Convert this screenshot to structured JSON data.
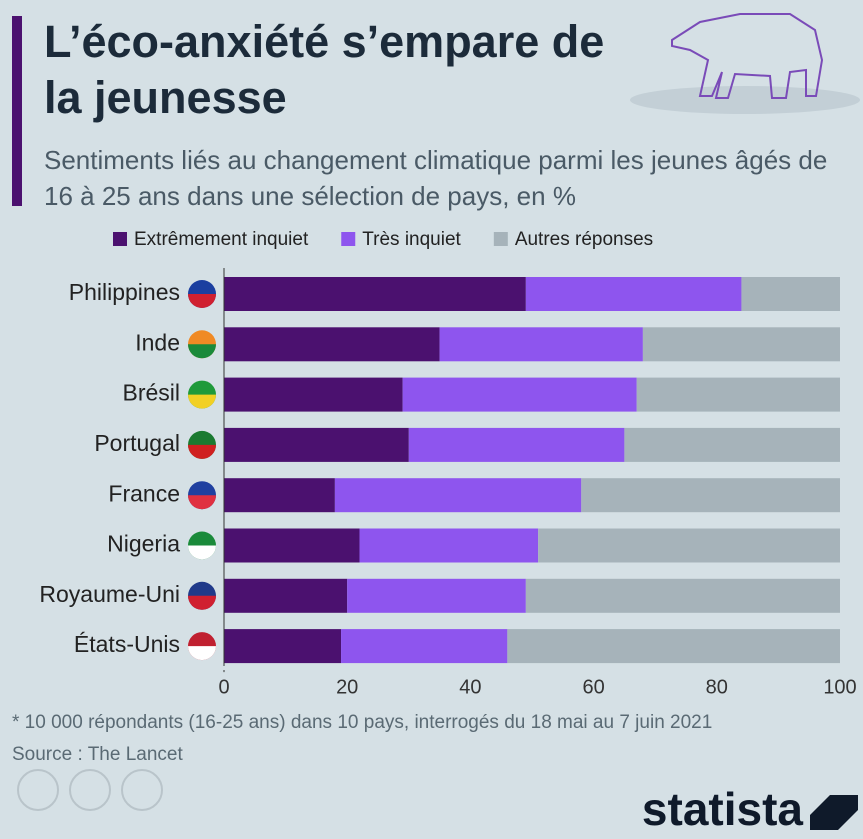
{
  "chart_data": {
    "type": "bar",
    "orientation": "horizontal",
    "stacked": true,
    "title": "L’éco-anxiété s’empare de la jeunesse",
    "subtitle": "Sentiments liés au changement climatique parmi les jeunes âgés de 16 à 25 ans dans une sélection de pays, en %",
    "categories": [
      "Philippines",
      "Inde",
      "Brésil",
      "Portugal",
      "France",
      "Nigeria",
      "Royaume-Uni",
      "États-Unis"
    ],
    "series": [
      {
        "name": "Extrêmement inquiet",
        "color": "#4b116f",
        "values": [
          49,
          35,
          29,
          30,
          18,
          22,
          20,
          19
        ]
      },
      {
        "name": "Très inquiet",
        "color": "#8e55ee",
        "values": [
          35,
          33,
          38,
          35,
          40,
          29,
          29,
          27
        ]
      },
      {
        "name": "Autres réponses",
        "color": "#a6b3ba",
        "values": [
          16,
          32,
          33,
          35,
          42,
          49,
          51,
          54
        ]
      }
    ],
    "xlim": [
      0,
      100
    ],
    "xticks": [
      0,
      20,
      40,
      60,
      80,
      100
    ],
    "grid": false,
    "legend": "top",
    "note": "* 10 000 répondants (16-25 ans) dans 10 pays, interrogés du 18 mai au 7 juin 2021",
    "source": "Source : The Lancet"
  },
  "brand": "statista"
}
